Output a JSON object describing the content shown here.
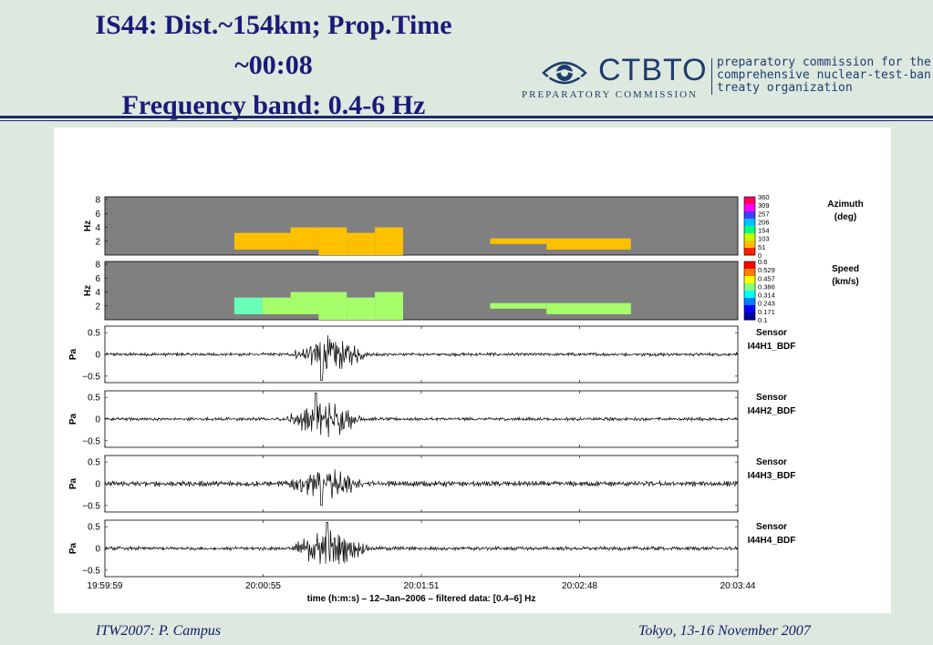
{
  "title": {
    "line1": "IS44: Dist.~154km; Prop.Time",
    "line2": "~00:08",
    "line3": "Frequency band: 0.4-6 Hz"
  },
  "logo": {
    "name": "CTBTO",
    "subtitle": "PREPARATORY COMMISSION",
    "desc1": "preparatory commission for the",
    "desc2": "comprehensive nuclear-test-ban",
    "desc3": "treaty organization"
  },
  "footer": {
    "left": "ITW2007: P. Campus",
    "right": "Tokyo, 13-16 November 2007"
  },
  "colors": {
    "spectro_bg": "#808080",
    "azimuth_fill": "#ffc000",
    "speed_fill": "#a6ff6a",
    "speed_fill_alt": "#69ffb9",
    "trace": "#000000"
  },
  "chart_data": {
    "type": "waveform",
    "xlabel": "time (h:m:s) – 12–Jan–2006 – filtered data: [0.4–6] Hz",
    "xtick_labels": [
      "19:59:59",
      "20:00:55",
      "20:01:51",
      "20:02:48",
      "20:03:44"
    ],
    "xrange_seconds_after_195959": [
      0,
      225
    ],
    "spectrograms": [
      {
        "name": "Azimuth",
        "unit": "(deg)",
        "ylabel": "Hz",
        "yticks": [
          "8",
          "6",
          "4",
          "2"
        ],
        "ylim": [
          0,
          8.4
        ],
        "colorbar_labels": [
          "360",
          "309",
          "257",
          "206",
          "154",
          "103",
          "51",
          "0"
        ],
        "segments": [
          {
            "t0": 46,
            "t1": 66,
            "f0": 0.8,
            "f1": 3.2,
            "value_deg": 50
          },
          {
            "t0": 66,
            "t1": 76,
            "f0": 0.8,
            "f1": 4.0,
            "value_deg": 50
          },
          {
            "t0": 76,
            "t1": 86,
            "f0": 0.0,
            "f1": 4.0,
            "value_deg": 50
          },
          {
            "t0": 86,
            "t1": 96,
            "f0": 0.0,
            "f1": 3.2,
            "value_deg": 50
          },
          {
            "t0": 96,
            "t1": 106,
            "f0": 0.0,
            "f1": 4.0,
            "value_deg": 50
          },
          {
            "t0": 137,
            "t1": 157,
            "f0": 1.6,
            "f1": 2.4,
            "value_deg": 50
          },
          {
            "t0": 157,
            "t1": 187,
            "f0": 0.8,
            "f1": 2.4,
            "value_deg": 50
          }
        ]
      },
      {
        "name": "Speed",
        "unit": "(km/s)",
        "ylabel": "Hz",
        "yticks": [
          "8",
          "6",
          "4",
          "2"
        ],
        "ylim": [
          0,
          8.4
        ],
        "colorbar_labels": [
          "0.6",
          "0.529",
          "0.457",
          "0.386",
          "0.314",
          "0.243",
          "0.171",
          "0.1"
        ],
        "segments": [
          {
            "t0": 46,
            "t1": 56,
            "f0": 0.8,
            "f1": 3.2,
            "value_kms": 0.31
          },
          {
            "t0": 56,
            "t1": 66,
            "f0": 0.8,
            "f1": 3.2,
            "value_kms": 0.34
          },
          {
            "t0": 66,
            "t1": 76,
            "f0": 0.8,
            "f1": 4.0,
            "value_kms": 0.34
          },
          {
            "t0": 76,
            "t1": 86,
            "f0": 0.0,
            "f1": 4.0,
            "value_kms": 0.34
          },
          {
            "t0": 86,
            "t1": 96,
            "f0": 0.0,
            "f1": 3.2,
            "value_kms": 0.34
          },
          {
            "t0": 96,
            "t1": 106,
            "f0": 0.0,
            "f1": 4.0,
            "value_kms": 0.34
          },
          {
            "t0": 137,
            "t1": 157,
            "f0": 1.6,
            "f1": 2.4,
            "value_kms": 0.34
          },
          {
            "t0": 157,
            "t1": 187,
            "f0": 0.8,
            "f1": 2.4,
            "value_kms": 0.34
          }
        ]
      }
    ],
    "traces": [
      {
        "name": "I44H1_BDF",
        "label": "Sensor",
        "ylabel": "Pa",
        "yticks": [
          "0.5",
          "0",
          "−0.5"
        ],
        "ylim": [
          -0.65,
          0.65
        ],
        "onset_s": 66,
        "peak_s": 77,
        "peak_value": -0.6,
        "noise_amp": 0.03,
        "signal_amp": 0.3
      },
      {
        "name": "I44H2_BDF",
        "label": "Sensor",
        "ylabel": "Pa",
        "yticks": [
          "0.5",
          "0",
          "−0.5"
        ],
        "ylim": [
          -0.65,
          0.65
        ],
        "onset_s": 64,
        "peak_s": 75,
        "peak_value": 0.6,
        "noise_amp": 0.03,
        "signal_amp": 0.3
      },
      {
        "name": "I44H3_BDF",
        "label": "Sensor",
        "ylabel": "Pa",
        "yticks": [
          "0.5",
          "0",
          "−0.5"
        ],
        "ylim": [
          -0.65,
          0.65
        ],
        "onset_s": 64,
        "peak_s": 77,
        "peak_value": -0.5,
        "noise_amp": 0.05,
        "signal_amp": 0.22
      },
      {
        "name": "I44H4_BDF",
        "label": "Sensor",
        "ylabel": "Pa",
        "yticks": [
          "0.5",
          "0",
          "−0.5"
        ],
        "ylim": [
          -0.65,
          0.65
        ],
        "onset_s": 66,
        "peak_s": 79,
        "peak_value": 0.6,
        "noise_amp": 0.035,
        "signal_amp": 0.28
      }
    ]
  }
}
